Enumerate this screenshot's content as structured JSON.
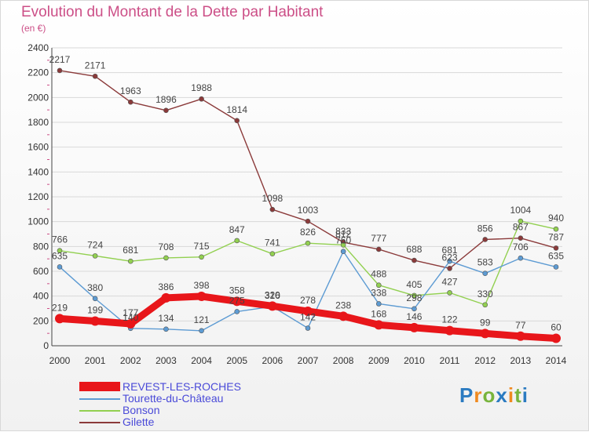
{
  "header": {
    "title": "Evolution du Montant de la Dette par Habitant",
    "unit": "(en €)"
  },
  "chart_data": {
    "type": "line",
    "title": "Evolution du Montant de la Dette par Habitant",
    "subtitle": "(en €)",
    "xlabel": "",
    "ylabel": "",
    "x": [
      2000,
      2001,
      2002,
      2003,
      2004,
      2005,
      2006,
      2007,
      2008,
      2009,
      2010,
      2011,
      2012,
      2013,
      2014
    ],
    "ylim": [
      0,
      2400
    ],
    "yticks": [
      0,
      200,
      400,
      600,
      800,
      1000,
      1200,
      1400,
      1600,
      1800,
      2000,
      2200,
      2400
    ],
    "grid": "horizontal",
    "legend_position": "bottom-left",
    "series": [
      {
        "name": "REVEST-LES-ROCHES",
        "color": "#e8161a",
        "values": [
          219,
          199,
          177,
          386,
          398,
          358,
          320,
          278,
          238,
          168,
          146,
          122,
          99,
          77,
          60
        ]
      },
      {
        "name": "Tourette-du-Château",
        "color": "#5d9bd3",
        "values": [
          635,
          380,
          140,
          134,
          121,
          275,
          316,
          142,
          760,
          338,
          298,
          681,
          583,
          706,
          635
        ]
      },
      {
        "name": "Bonson",
        "color": "#92d050",
        "values": [
          766,
          724,
          681,
          708,
          715,
          847,
          741,
          826,
          812,
          488,
          405,
          427,
          330,
          1004,
          940
        ]
      },
      {
        "name": "Gilette",
        "color": "#8b3a3a",
        "values": [
          2217,
          2171,
          1963,
          1896,
          1988,
          1814,
          1098,
          1003,
          833,
          777,
          688,
          623,
          856,
          867,
          787
        ]
      }
    ]
  },
  "logo": {
    "letters": [
      "P",
      "r",
      "o",
      "x",
      "i",
      "t",
      "i"
    ],
    "colors": [
      "#2b7bc1",
      "#f08a1f",
      "#78b43c",
      "#2b7bc1",
      "#f08a1f",
      "#78b43c",
      "#2b7bc1"
    ]
  }
}
